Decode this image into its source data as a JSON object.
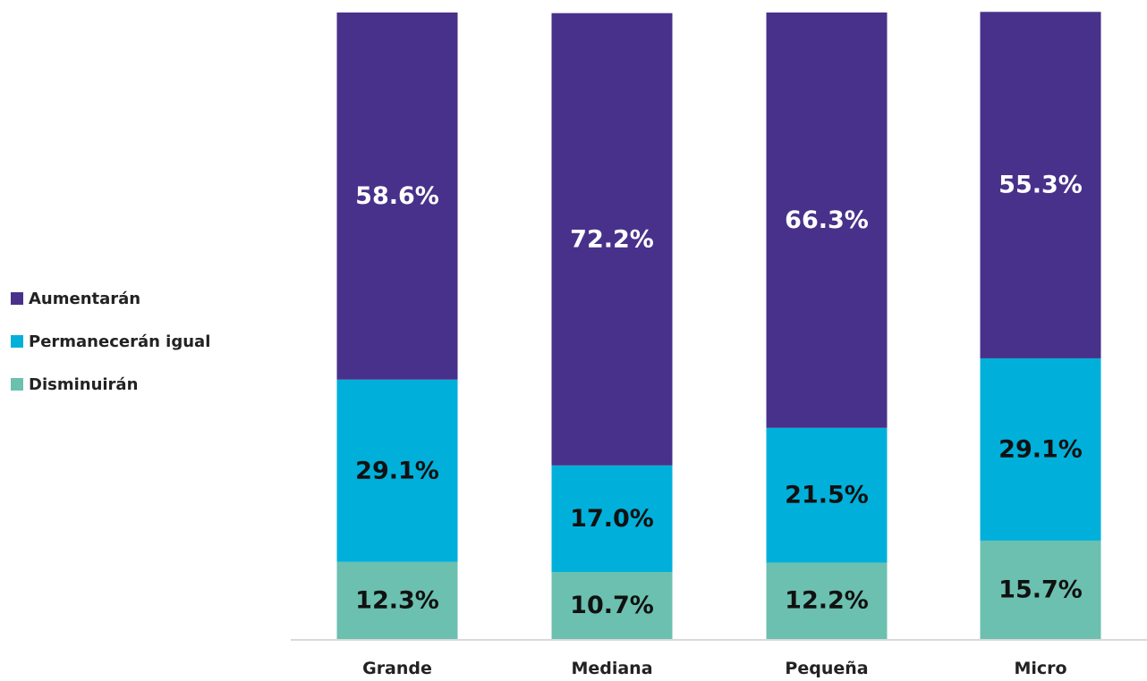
{
  "chart_data": {
    "type": "bar",
    "stacked": true,
    "categories": [
      "Grande",
      "Mediana",
      "Pequeña",
      "Micro"
    ],
    "series": [
      {
        "name": "Disminuirán",
        "values": [
          12.3,
          10.7,
          12.2,
          15.7
        ],
        "color": "#6cc0b0",
        "label_color": "#111111"
      },
      {
        "name": "Permanecerán igual",
        "values": [
          29.1,
          17.0,
          21.5,
          29.1
        ],
        "color": "#00b0da",
        "label_color": "#111111"
      },
      {
        "name": "Aumentarán",
        "values": [
          58.6,
          72.2,
          66.3,
          55.3
        ],
        "color": "#48318a",
        "label_color": "#ffffff"
      }
    ],
    "data_labels": [
      [
        "12.3%",
        "10.7%",
        "12.2%",
        "15.7%"
      ],
      [
        "29.1%",
        "17.0%",
        "21.5%",
        "29.1%"
      ],
      [
        "58.6%",
        "72.2%",
        "66.3%",
        "55.3%"
      ]
    ],
    "legend": {
      "position": "left",
      "items": [
        "Aumentarán",
        "Permanecerán igual",
        "Disminuirán"
      ]
    },
    "ylim": [
      0,
      100
    ],
    "grid": false,
    "title": "",
    "xlabel": "",
    "ylabel": "",
    "axis_color": "#d9d9d9",
    "tick_color": "#222222"
  }
}
